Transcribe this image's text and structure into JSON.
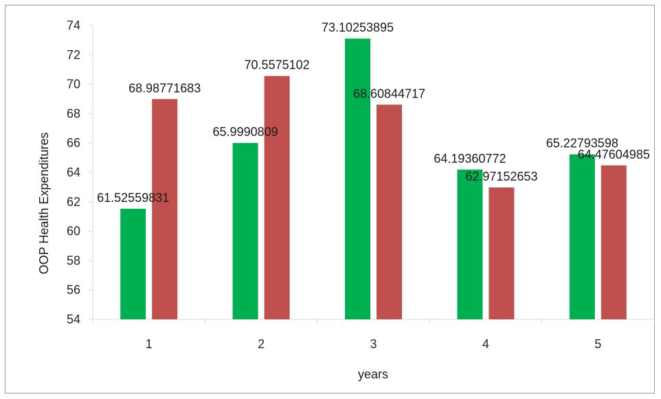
{
  "chart_data": {
    "type": "bar",
    "categories": [
      "1",
      "2",
      "3",
      "4",
      "5"
    ],
    "series": [
      {
        "values": [
          61.52559831,
          65.9990809,
          73.10253895,
          64.19360772,
          65.22793598
        ],
        "labels": [
          "61.52559831",
          "65.9990809",
          "73.10253895",
          "64.19360772",
          "65.22793598"
        ],
        "color": "#00b050"
      },
      {
        "values": [
          68.98771683,
          70.5575102,
          68.60844717,
          62.97152653,
          64.47604985
        ],
        "labels": [
          "68.98771683",
          "70.5575102",
          "68.60844717",
          "62.97152653",
          "64.47604985"
        ],
        "color": "#c0504d"
      }
    ],
    "xlabel": "years",
    "ylabel": "OOP Health Expenditures",
    "ylim": [
      54,
      74
    ],
    "yticks": [
      "54",
      "56",
      "58",
      "60",
      "62",
      "64",
      "66",
      "68",
      "70",
      "72",
      "74"
    ],
    "grid": false,
    "legend": "none",
    "axis_color": "#d9d9d9"
  }
}
